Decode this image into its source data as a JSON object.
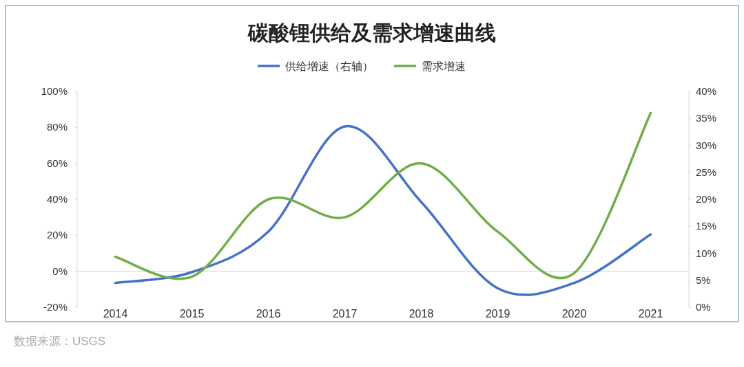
{
  "chart_data": {
    "type": "line",
    "title": "碳酸锂供给及需求增速曲线",
    "categories": [
      "2014",
      "2015",
      "2016",
      "2017",
      "2018",
      "2019",
      "2020",
      "2021"
    ],
    "series": [
      {
        "name": "供给增速（右轴）",
        "color": "#4472c4",
        "axis": "y2",
        "values": [
          4.5,
          6.5,
          14,
          33.5,
          19.5,
          3.5,
          4.5,
          13.5
        ]
      },
      {
        "name": "需求增速",
        "color": "#70ad47",
        "values": [
          8,
          -3,
          40,
          30,
          60,
          22,
          -1,
          88
        ]
      }
    ],
    "ylim": [
      -20,
      100
    ],
    "yticks": [
      {
        "value": -20,
        "label": "-20%"
      },
      {
        "value": 0,
        "label": "0%"
      },
      {
        "value": 20,
        "label": "20%"
      },
      {
        "value": 40,
        "label": "40%"
      },
      {
        "value": 60,
        "label": "60%"
      },
      {
        "value": 80,
        "label": "80%"
      },
      {
        "value": 100,
        "label": "100%"
      }
    ],
    "y2lim": [
      0,
      40
    ],
    "y2ticks": [
      {
        "value": 0,
        "label": "0%"
      },
      {
        "value": 5,
        "label": "5%"
      },
      {
        "value": 10,
        "label": "10%"
      },
      {
        "value": 15,
        "label": "15%"
      },
      {
        "value": 20,
        "label": "20%"
      },
      {
        "value": 25,
        "label": "25%"
      },
      {
        "value": 30,
        "label": "30%"
      },
      {
        "value": 35,
        "label": "35%"
      },
      {
        "value": 40,
        "label": "40%"
      }
    ],
    "legend": "top",
    "annotations": [
      "数据来源：USGS"
    ]
  }
}
